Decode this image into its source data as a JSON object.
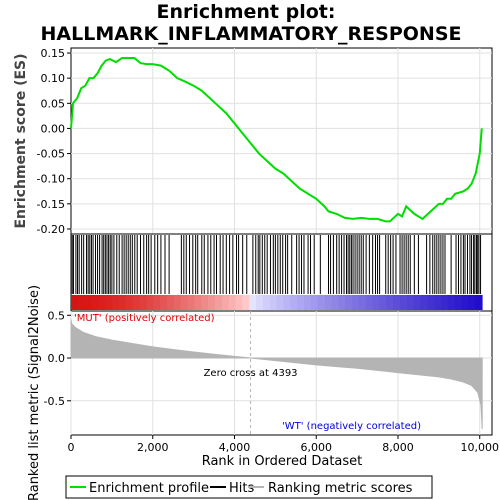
{
  "title_line1": "Enrichment plot:",
  "title_line2": "HALLMARK_INFLAMMATORY_RESPONSE",
  "colors": {
    "es_line": "#00dd00",
    "hits": "#000000",
    "metric_fill": "#b4b4b4",
    "mut_text": "#dd0000",
    "wt_text": "#0000dd",
    "zero_cross_line": "#b4b4b4"
  },
  "chart_data": [
    {
      "type": "line",
      "name": "enrichment-profile",
      "ylabel": "Enrichment score (ES)",
      "xlim": [
        0,
        10300
      ],
      "ylim": [
        -0.21,
        0.16
      ],
      "yticks": [
        -0.2,
        -0.15,
        -0.1,
        -0.05,
        0.0,
        0.05,
        0.1,
        0.15
      ],
      "ytick_labels": [
        "-0.20",
        "-0.15",
        "-0.10",
        "-0.05",
        "0.00",
        "0.05",
        "0.10",
        "0.15"
      ],
      "grid": true,
      "x": [
        0,
        50,
        150,
        250,
        350,
        450,
        550,
        650,
        750,
        850,
        950,
        1100,
        1250,
        1400,
        1550,
        1700,
        1850,
        2000,
        2200,
        2400,
        2600,
        2800,
        3000,
        3200,
        3400,
        3600,
        3800,
        4000,
        4200,
        4400,
        4600,
        4800,
        5000,
        5200,
        5400,
        5600,
        5800,
        6000,
        6200,
        6300,
        6500,
        6700,
        6900,
        7100,
        7300,
        7500,
        7700,
        7800,
        8000,
        8100,
        8200,
        8400,
        8600,
        8800,
        9000,
        9100,
        9200,
        9300,
        9400,
        9600,
        9700,
        9800,
        9850,
        9900,
        9950,
        10000,
        10050
      ],
      "y": [
        0.0,
        0.05,
        0.06,
        0.08,
        0.085,
        0.1,
        0.1,
        0.11,
        0.125,
        0.135,
        0.138,
        0.132,
        0.14,
        0.14,
        0.14,
        0.13,
        0.128,
        0.128,
        0.125,
        0.115,
        0.1,
        0.093,
        0.085,
        0.075,
        0.06,
        0.045,
        0.03,
        0.01,
        -0.01,
        -0.03,
        -0.05,
        -0.065,
        -0.08,
        -0.09,
        -0.105,
        -0.12,
        -0.13,
        -0.14,
        -0.155,
        -0.165,
        -0.17,
        -0.178,
        -0.18,
        -0.178,
        -0.18,
        -0.18,
        -0.185,
        -0.185,
        -0.17,
        -0.175,
        -0.155,
        -0.17,
        -0.18,
        -0.165,
        -0.15,
        -0.15,
        -0.14,
        -0.14,
        -0.13,
        -0.125,
        -0.12,
        -0.11,
        -0.1,
        -0.09,
        -0.07,
        -0.05,
        0.0
      ]
    },
    {
      "type": "line",
      "name": "hits",
      "positions": [
        30,
        60,
        120,
        160,
        200,
        260,
        310,
        380,
        420,
        460,
        500,
        540,
        600,
        650,
        700,
        760,
        800,
        840,
        880,
        920,
        960,
        1000,
        1050,
        1120,
        1180,
        1250,
        1300,
        1350,
        1400,
        1450,
        1500,
        1560,
        1620,
        1700,
        1780,
        1850,
        1900,
        1960,
        2050,
        2120,
        2200,
        2300,
        2400,
        2700,
        2760,
        2820,
        2900,
        2980,
        3050,
        3100,
        3200,
        3260,
        3350,
        3420,
        3500,
        3560,
        3650,
        3720,
        3800,
        3880,
        3960,
        4050,
        4100,
        4200,
        4300,
        4450,
        4520,
        4580,
        4620,
        4680,
        4740,
        4800,
        4880,
        4950,
        5000,
        5060,
        5120,
        5180,
        5250,
        5300,
        5400,
        5520,
        5580,
        5640,
        5700,
        5800,
        5860,
        5950,
        6100,
        6300,
        6350,
        6420,
        6500,
        6560,
        6620,
        6680,
        6740,
        6780,
        6820,
        6860,
        6900,
        6950,
        7000,
        7050,
        7100,
        7150,
        7220,
        7300,
        7380,
        7450,
        7500,
        7550,
        7700,
        7760,
        7820,
        7880,
        7950,
        8050,
        8100,
        8150,
        8200,
        8250,
        8300,
        8400,
        8500,
        8700,
        8780,
        8850,
        8900,
        8950,
        9000,
        9050,
        9100,
        9150,
        9300,
        9420,
        9480,
        9540,
        9600,
        9640,
        9700,
        9760,
        9800,
        9850,
        9880,
        9920,
        9950,
        9980,
        10020
      ]
    },
    {
      "type": "area",
      "name": "ranking-metric-scores",
      "ylabel": "Ranked list metric (Signal2Noise)",
      "xlabel": "Rank in Ordered Dataset",
      "xlim": [
        0,
        10300
      ],
      "ylim": [
        -0.9,
        0.55
      ],
      "yticks": [
        -0.5,
        0.0,
        0.5
      ],
      "ytick_labels": [
        "-0.5",
        "0.0",
        "0.5"
      ],
      "xticks": [
        0,
        2000,
        4000,
        6000,
        8000,
        10000
      ],
      "xtick_labels": [
        "0",
        "2,000",
        "4,000",
        "6,000",
        "8,000",
        "10,000"
      ],
      "x": [
        0,
        20,
        100,
        300,
        600,
        1000,
        1500,
        2000,
        2500,
        3000,
        3500,
        4000,
        4393,
        5000,
        5500,
        6000,
        6500,
        7000,
        7500,
        8000,
        8500,
        9000,
        9300,
        9600,
        9800,
        9950,
        10030,
        10060
      ],
      "y": [
        0.45,
        0.4,
        0.36,
        0.3,
        0.25,
        0.21,
        0.17,
        0.13,
        0.1,
        0.07,
        0.045,
        0.02,
        0.0,
        -0.03,
        -0.055,
        -0.08,
        -0.1,
        -0.12,
        -0.145,
        -0.17,
        -0.195,
        -0.22,
        -0.245,
        -0.28,
        -0.32,
        -0.4,
        -0.55,
        -0.83
      ],
      "zero_cross": 4393,
      "annotations": {
        "zero_cross_text": "Zero cross at 4393",
        "mut_text": "'MUT' (positively correlated)",
        "wt_text": "'WT' (negatively correlated)"
      }
    }
  ],
  "legend": {
    "items": [
      {
        "label": "Enrichment profile",
        "color": "#00dd00",
        "kind": "line"
      },
      {
        "label": "Hits",
        "color": "#000000",
        "kind": "line"
      },
      {
        "label": "Ranking metric scores",
        "color": "#b4b4b4",
        "kind": "line"
      }
    ]
  }
}
